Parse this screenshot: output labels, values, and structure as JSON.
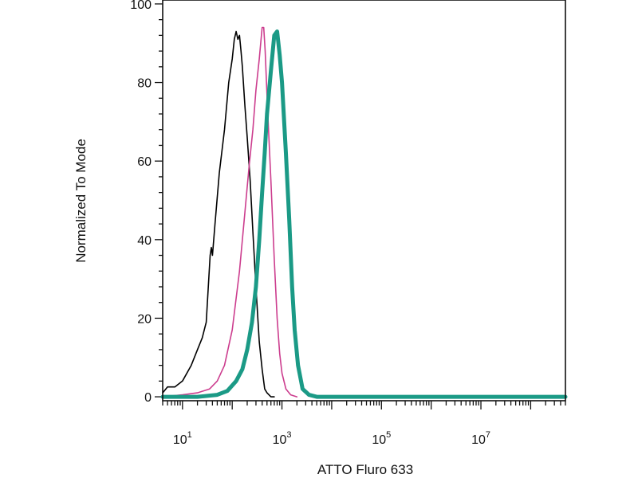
{
  "chart_data": {
    "type": "line",
    "title": "",
    "xlabel": "ATTO Fluro 633",
    "ylabel": "Normalized To Mode",
    "xscale": "log",
    "xlim": [
      4,
      500000000
    ],
    "ylim": [
      -1,
      101
    ],
    "grid": false,
    "x_tick_labels": [
      {
        "base": "10",
        "exp": "1",
        "value": 10
      },
      {
        "base": "10",
        "exp": "3",
        "value": 1000
      },
      {
        "base": "10",
        "exp": "5",
        "value": 100000
      },
      {
        "base": "10",
        "exp": "7",
        "value": 10000000
      }
    ],
    "y_ticks": [
      0,
      20,
      40,
      60,
      80,
      100
    ],
    "series": [
      {
        "color": "#000000",
        "width": 1.6,
        "points": [
          [
            4,
            1
          ],
          [
            5,
            2.5
          ],
          [
            7,
            2.5
          ],
          [
            10,
            4
          ],
          [
            15,
            8
          ],
          [
            20,
            12
          ],
          [
            25,
            15
          ],
          [
            30,
            19
          ],
          [
            33,
            28
          ],
          [
            36,
            36
          ],
          [
            38,
            38
          ],
          [
            40,
            36
          ],
          [
            45,
            44
          ],
          [
            55,
            57
          ],
          [
            70,
            68
          ],
          [
            85,
            80
          ],
          [
            100,
            86
          ],
          [
            110,
            91
          ],
          [
            120,
            93
          ],
          [
            130,
            91
          ],
          [
            140,
            92
          ],
          [
            150,
            88
          ],
          [
            160,
            84
          ],
          [
            180,
            74
          ],
          [
            200,
            66
          ],
          [
            230,
            55
          ],
          [
            260,
            42
          ],
          [
            300,
            28
          ],
          [
            350,
            14
          ],
          [
            400,
            7
          ],
          [
            450,
            2
          ],
          [
            500,
            1
          ],
          [
            600,
            0
          ],
          [
            700,
            0
          ]
        ]
      },
      {
        "color": "#cc3d8e",
        "width": 1.6,
        "points": [
          [
            4,
            0
          ],
          [
            10,
            0.5
          ],
          [
            20,
            1
          ],
          [
            35,
            2
          ],
          [
            50,
            4
          ],
          [
            70,
            8
          ],
          [
            100,
            17
          ],
          [
            140,
            32
          ],
          [
            180,
            47
          ],
          [
            220,
            59
          ],
          [
            260,
            68
          ],
          [
            300,
            78
          ],
          [
            350,
            86
          ],
          [
            400,
            94
          ],
          [
            430,
            94
          ],
          [
            460,
            88
          ],
          [
            520,
            72
          ],
          [
            600,
            55
          ],
          [
            700,
            35
          ],
          [
            800,
            20
          ],
          [
            900,
            11
          ],
          [
            1000,
            6
          ],
          [
            1200,
            2
          ],
          [
            1500,
            0.5
          ],
          [
            2000,
            0
          ]
        ]
      },
      {
        "color": "#1b9a86",
        "width": 5,
        "points": [
          [
            4,
            0
          ],
          [
            20,
            0
          ],
          [
            50,
            0.5
          ],
          [
            80,
            1.5
          ],
          [
            120,
            4
          ],
          [
            160,
            7
          ],
          [
            200,
            12
          ],
          [
            250,
            19
          ],
          [
            300,
            28
          ],
          [
            350,
            40
          ],
          [
            400,
            52
          ],
          [
            450,
            62
          ],
          [
            500,
            72
          ],
          [
            600,
            83
          ],
          [
            700,
            92
          ],
          [
            800,
            93
          ],
          [
            900,
            87
          ],
          [
            1000,
            80
          ],
          [
            1200,
            62
          ],
          [
            1400,
            45
          ],
          [
            1600,
            28
          ],
          [
            1800,
            17
          ],
          [
            2100,
            8
          ],
          [
            2600,
            2
          ],
          [
            3500,
            0.5
          ],
          [
            5000,
            0
          ],
          [
            100000,
            0
          ],
          [
            500000000,
            0
          ]
        ]
      }
    ]
  }
}
